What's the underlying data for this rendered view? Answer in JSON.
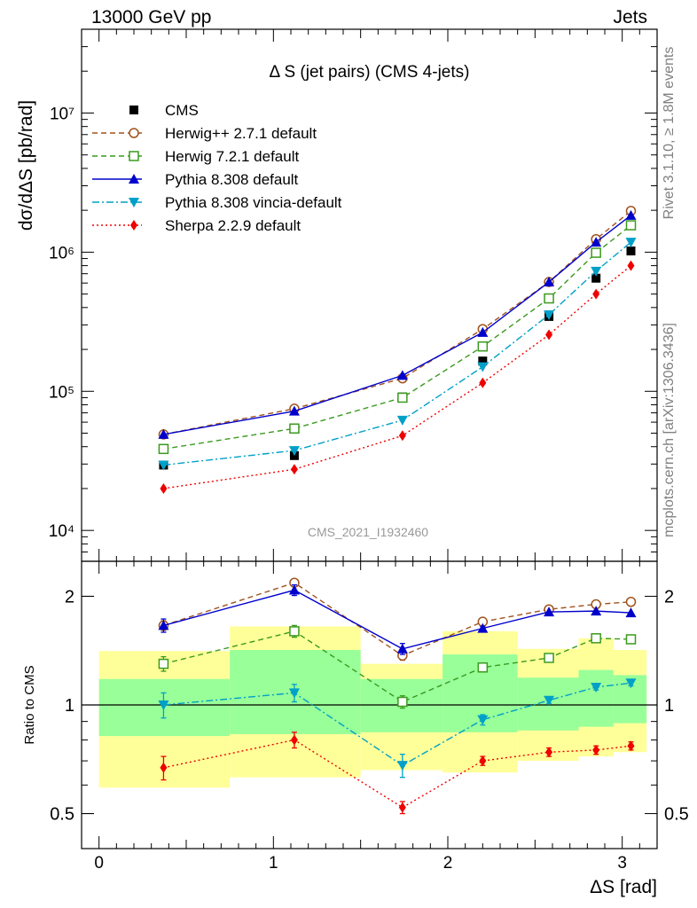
{
  "header": {
    "energy": "13000 GeV pp",
    "process": "Jets",
    "plot_title": "Δ S (jet pairs) (CMS 4-jets)",
    "analysis": "CMS_2021_I1932460",
    "side_right_top": "Rivet 3.1.10, ≥ 1.8M events",
    "side_right_bottom": "mcplots.cern.ch [arXiv:1306.3436]"
  },
  "chart_data": [
    {
      "type": "scatter",
      "panel": "main",
      "xlabel": "ΔS [rad]",
      "ylabel": "dσ/dΔS [pb/rad]",
      "yscale": "log",
      "xlim": [
        -0.1,
        3.2
      ],
      "ylim": [
        6000,
        40000000
      ],
      "yticks": [
        {
          "value": 10000,
          "label": "10⁴"
        },
        {
          "value": 100000,
          "label": "10⁵"
        },
        {
          "value": 1000000,
          "label": "10⁶"
        },
        {
          "value": 10000000,
          "label": "10⁷"
        }
      ],
      "legend_position": "top-left",
      "x": [
        0.37,
        1.12,
        1.74,
        2.2,
        2.58,
        2.85,
        3.05
      ],
      "series": [
        {
          "name": "CMS",
          "color": "#000000",
          "marker": "square-filled",
          "line": "none",
          "values": [
            29500,
            34500,
            91000,
            165000,
            345000,
            650000,
            1020000
          ]
        },
        {
          "name": "Herwig++ 2.7.1 default",
          "color": "#a0521c",
          "marker": "circle-open",
          "line": "dashed",
          "values": [
            49000,
            75000,
            124000,
            280000,
            610000,
            1240000,
            1980000
          ]
        },
        {
          "name": "Herwig 7.2.1 default",
          "color": "#3a9a1e",
          "marker": "square-open",
          "line": "dashed",
          "values": [
            38500,
            54000,
            90000,
            210000,
            465000,
            990000,
            1560000
          ]
        },
        {
          "name": "Pythia 8.308 default",
          "color": "#0000cc",
          "marker": "triangle-up-filled",
          "line": "solid",
          "values": [
            49000,
            72000,
            130000,
            265000,
            610000,
            1180000,
            1840000
          ]
        },
        {
          "name": "Pythia 8.308 vincia-default",
          "color": "#00a0c8",
          "marker": "triangle-down-filled",
          "line": "dashdot",
          "values": [
            29500,
            37500,
            62000,
            150000,
            355000,
            730000,
            1180000
          ]
        },
        {
          "name": "Sherpa 2.2.9 default",
          "color": "#ee0000",
          "marker": "diamond-filled",
          "line": "dotted",
          "values": [
            20000,
            27500,
            48000,
            115000,
            255000,
            500000,
            800000
          ]
        }
      ]
    },
    {
      "type": "scatter",
      "panel": "ratio",
      "xlabel": "ΔS [rad]",
      "ylabel": "Ratio to CMS",
      "yscale": "log",
      "xlim": [
        -0.1,
        3.2
      ],
      "ylim": [
        0.4,
        2.5
      ],
      "xticks": [
        0,
        1,
        2,
        3
      ],
      "yticks": [
        {
          "value": 0.5,
          "label": "0.5"
        },
        {
          "value": 1,
          "label": "1"
        },
        {
          "value": 2,
          "label": "2"
        }
      ],
      "x": [
        0.37,
        1.12,
        1.74,
        2.2,
        2.58,
        2.85,
        3.05
      ],
      "uncertainty_bins": [
        {
          "x0": 0.0,
          "x1": 0.75,
          "stat_lo": 0.82,
          "stat_hi": 1.18,
          "tot_lo": 0.59,
          "tot_hi": 1.41
        },
        {
          "x0": 0.75,
          "x1": 1.5,
          "stat_lo": 0.83,
          "stat_hi": 1.42,
          "tot_lo": 0.63,
          "tot_hi": 1.65
        },
        {
          "x0": 1.5,
          "x1": 1.97,
          "stat_lo": 0.84,
          "stat_hi": 1.18,
          "tot_lo": 0.66,
          "tot_hi": 1.3
        },
        {
          "x0": 1.97,
          "x1": 2.4,
          "stat_lo": 0.84,
          "stat_hi": 1.38,
          "tot_lo": 0.65,
          "tot_hi": 1.6
        },
        {
          "x0": 2.4,
          "x1": 2.75,
          "stat_lo": 0.85,
          "stat_hi": 1.19,
          "tot_lo": 0.7,
          "tot_hi": 1.43
        },
        {
          "x0": 2.75,
          "x1": 2.95,
          "stat_lo": 0.87,
          "stat_hi": 1.25,
          "tot_lo": 0.72,
          "tot_hi": 1.53
        },
        {
          "x0": 2.95,
          "x1": 3.14,
          "stat_lo": 0.89,
          "stat_hi": 1.21,
          "tot_lo": 0.74,
          "tot_hi": 1.42
        }
      ],
      "series": [
        {
          "name": "Herwig++ 2.7.1 default",
          "values": [
            1.66,
            2.18,
            1.37,
            1.7,
            1.84,
            1.9,
            1.93
          ],
          "err": [
            0.05,
            0.05,
            0.04,
            0.02,
            0.02,
            0.02,
            0.02
          ]
        },
        {
          "name": "Herwig 7.2.1 default",
          "values": [
            1.3,
            1.6,
            1.02,
            1.27,
            1.35,
            1.53,
            1.52
          ],
          "err": [
            0.06,
            0.06,
            0.04,
            0.02,
            0.02,
            0.02,
            0.02
          ]
        },
        {
          "name": "Pythia 8.308 default",
          "values": [
            1.66,
            2.08,
            1.43,
            1.63,
            1.81,
            1.82,
            1.8
          ],
          "err": [
            0.07,
            0.07,
            0.05,
            0.02,
            0.02,
            0.02,
            0.02
          ]
        },
        {
          "name": "Pythia 8.308 vincia-default",
          "values": [
            1.0,
            1.08,
            0.68,
            0.91,
            1.03,
            1.12,
            1.15
          ],
          "err": [
            0.08,
            0.06,
            0.05,
            0.03,
            0.02,
            0.02,
            0.02
          ]
        },
        {
          "name": "Sherpa 2.2.9 default",
          "values": [
            0.67,
            0.8,
            0.52,
            0.7,
            0.74,
            0.75,
            0.77
          ],
          "err": [
            0.05,
            0.04,
            0.02,
            0.02,
            0.02,
            0.02,
            0.02
          ]
        }
      ]
    }
  ]
}
